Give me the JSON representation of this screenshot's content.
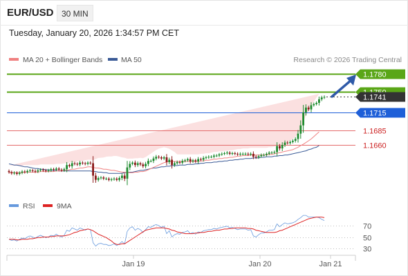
{
  "header": {
    "symbol": "EUR/USD",
    "timeframe": "30 MIN"
  },
  "datetime": "Tuesday, January 20, 2026 1:34:57 PM CET",
  "legend": {
    "ma20_label": "MA 20 + Bollinger Bands",
    "ma50_label": "MA 50",
    "source": "Research © 2026 Trading Central"
  },
  "colors": {
    "ma20": "#f08080",
    "ma50": "#3a5a96",
    "band_fill": "#fbe0e0",
    "candle_up": "#1e8a2e",
    "candle_down": "#8b1a1a",
    "resistance": "#5aa617",
    "pivot": "#1e5fd8",
    "support": "#e46a6a",
    "current": "#333333",
    "arrow": "#2f5aa8",
    "rsi": "#6699dd",
    "rsi_ma": "#dd2222"
  },
  "chart_data": [
    {
      "type": "candlestick",
      "ylim": [
        1.156,
        1.179
      ],
      "x_tick_labels": [
        "Jan 19",
        "Jan 20",
        "Jan 21"
      ],
      "levels": [
        {
          "label": "1.1780",
          "value": 1.178,
          "kind": "resistance"
        },
        {
          "label": "1.1750",
          "value": 1.175,
          "kind": "resistance"
        },
        {
          "label": "1.1741",
          "value": 1.1741,
          "kind": "current"
        },
        {
          "label": "1.1715",
          "value": 1.1715,
          "kind": "pivot"
        },
        {
          "label": "1.1685",
          "value": 1.1685,
          "kind": "support"
        },
        {
          "label": "1.1660",
          "value": 1.166,
          "kind": "support"
        }
      ],
      "close": [
        1.1614,
        1.1612,
        1.1613,
        1.1611,
        1.1613,
        1.1615,
        1.1614,
        1.1616,
        1.1617,
        1.1616,
        1.1615,
        1.1617,
        1.1618,
        1.1617,
        1.1616,
        1.1617,
        1.1619,
        1.1618,
        1.162,
        1.1618,
        1.1617,
        1.1619,
        1.1626,
        1.1624,
        1.1629,
        1.1628,
        1.1627,
        1.163,
        1.1629,
        1.1628,
        1.163,
        1.1629,
        1.1608,
        1.1601,
        1.1604,
        1.1605,
        1.1603,
        1.1603,
        1.1601,
        1.1602,
        1.1603,
        1.1601,
        1.1604,
        1.1608,
        1.1603,
        1.1622,
        1.1628,
        1.163,
        1.1626,
        1.1629,
        1.1627,
        1.1624,
        1.1628,
        1.1633,
        1.1633,
        1.1637,
        1.164,
        1.1639,
        1.1637,
        1.1639,
        1.1631,
        1.1635,
        1.1626,
        1.1629,
        1.1631,
        1.163,
        1.1633,
        1.1634,
        1.1636,
        1.1632,
        1.1634,
        1.1632,
        1.1636,
        1.1635,
        1.1638,
        1.1639,
        1.164,
        1.164,
        1.1642,
        1.1642,
        1.1644,
        1.1645,
        1.1646,
        1.1647,
        1.1645,
        1.1646,
        1.1645,
        1.1644,
        1.1645,
        1.1645,
        1.1645,
        1.1644,
        1.1645,
        1.164,
        1.1639,
        1.1641,
        1.1643,
        1.1643,
        1.1645,
        1.1647,
        1.1647,
        1.1648,
        1.1658,
        1.1654,
        1.166,
        1.1664,
        1.1663,
        1.1665,
        1.1667,
        1.167,
        1.1679,
        1.1693,
        1.1715,
        1.1723,
        1.172,
        1.1727,
        1.1729,
        1.1731,
        1.1737,
        1.174,
        1.1741
      ],
      "series": [
        {
          "name": "MA 20 + Bollinger Bands",
          "values": [
            1.1613,
            1.1613,
            1.1613,
            1.1613,
            1.1613,
            1.1613,
            1.1614,
            1.1614,
            1.1614,
            1.1614,
            1.1614,
            1.1614,
            1.1615,
            1.1615,
            1.1615,
            1.1615,
            1.1615,
            1.1615,
            1.1616,
            1.1616,
            1.1616,
            1.1617,
            1.1617,
            1.1618,
            1.1619,
            1.1619,
            1.162,
            1.1621,
            1.1621,
            1.1622,
            1.1623,
            1.1623,
            1.1622,
            1.1621,
            1.1621,
            1.162,
            1.1619,
            1.1619,
            1.1618,
            1.1617,
            1.1617,
            1.1616,
            1.1615,
            1.1614,
            1.1614,
            1.1613,
            1.1613,
            1.1613,
            1.1614,
            1.1614,
            1.1615,
            1.1615,
            1.1616,
            1.1618,
            1.162,
            1.1622,
            1.1624,
            1.1626,
            1.1628,
            1.163,
            1.1631,
            1.1632,
            1.1632,
            1.1632,
            1.1632,
            1.1632,
            1.1632,
            1.1632,
            1.1632,
            1.1632,
            1.1632,
            1.1632,
            1.1632,
            1.1633,
            1.1633,
            1.1634,
            1.1634,
            1.1635,
            1.1636,
            1.1636,
            1.1637,
            1.1637,
            1.1638,
            1.1638,
            1.1639,
            1.1639,
            1.164,
            1.1641,
            1.1641,
            1.1642,
            1.1642,
            1.1642,
            1.1643,
            1.1643,
            1.1643,
            1.1643,
            1.1643,
            1.1643,
            1.1643,
            1.1644,
            1.1644,
            1.1645,
            1.1646,
            1.1647,
            1.1648,
            1.1649,
            1.165,
            1.1651,
            1.1652,
            1.1654,
            1.1656,
            1.1659,
            1.1661,
            1.1664,
            1.1667,
            1.167,
            1.1674,
            1.1678,
            1.1682
          ]
        },
        {
          "name": "MA 50",
          "values": [
            1.1628,
            1.1627,
            1.1626,
            1.1626,
            1.1625,
            1.1624,
            1.1623,
            1.1623,
            1.1622,
            1.1621,
            1.162,
            1.162,
            1.1619,
            1.1619,
            1.1618,
            1.1618,
            1.1617,
            1.1617,
            1.1617,
            1.1616,
            1.1616,
            1.1616,
            1.1616,
            1.1616,
            1.1616,
            1.1616,
            1.1616,
            1.1616,
            1.1616,
            1.1616,
            1.1616,
            1.1616,
            1.1615,
            1.1615,
            1.1614,
            1.1614,
            1.1613,
            1.1613,
            1.1612,
            1.1612,
            1.1612,
            1.1612,
            1.1612,
            1.1612,
            1.1613,
            1.1613,
            1.1614,
            1.1614,
            1.1615,
            1.1616,
            1.1617,
            1.1617,
            1.1618,
            1.1619,
            1.162,
            1.1621,
            1.1621,
            1.1622,
            1.1623,
            1.1623,
            1.1624,
            1.1624,
            1.1625,
            1.1625,
            1.1625,
            1.1626,
            1.1626,
            1.1626,
            1.1627,
            1.1627,
            1.1627,
            1.1628,
            1.1628,
            1.1629,
            1.1629,
            1.163,
            1.163,
            1.163,
            1.1631,
            1.1631,
            1.1632,
            1.1632,
            1.1633,
            1.1633,
            1.1634,
            1.1634,
            1.1635,
            1.1635,
            1.1636,
            1.1636,
            1.1637,
            1.1637,
            1.1637,
            1.1638,
            1.1638,
            1.1638,
            1.1639,
            1.1639,
            1.164,
            1.164,
            1.164,
            1.1641,
            1.1641,
            1.1642,
            1.1642,
            1.1643,
            1.1643,
            1.1644,
            1.1645,
            1.1646,
            1.1647,
            1.1648,
            1.1649,
            1.165,
            1.1652,
            1.1653,
            1.1655,
            1.1656,
            1.1659
          ]
        }
      ]
    },
    {
      "type": "line",
      "ylim": [
        20,
        85
      ],
      "y_ticks": [
        70,
        50,
        30
      ],
      "series": [
        {
          "name": "RSI",
          "values": [
            46,
            44,
            45,
            43,
            46,
            48,
            47,
            50,
            52,
            50,
            48,
            51,
            53,
            51,
            49,
            50,
            53,
            52,
            55,
            52,
            50,
            53,
            62,
            60,
            66,
            64,
            62,
            66,
            64,
            62,
            64,
            63,
            40,
            34,
            38,
            39,
            37,
            37,
            35,
            36,
            38,
            35,
            38,
            42,
            38,
            60,
            66,
            68,
            62,
            65,
            63,
            58,
            63,
            68,
            67,
            70,
            72,
            70,
            67,
            69,
            56,
            61,
            50,
            54,
            56,
            55,
            58,
            59,
            61,
            56,
            58,
            55,
            59,
            58,
            61,
            62,
            63,
            63,
            65,
            64,
            66,
            67,
            68,
            69,
            66,
            67,
            65,
            63,
            64,
            64,
            64,
            62,
            63,
            52,
            50,
            54,
            57,
            57,
            59,
            62,
            62,
            63,
            73,
            68,
            72,
            75,
            73,
            74,
            75,
            77,
            81,
            84,
            88,
            88,
            85,
            85,
            85,
            85,
            84,
            81,
            79
          ]
        },
        {
          "name": "9MA",
          "values": [
            46,
            46,
            46,
            45,
            45,
            46,
            46,
            46,
            47,
            47,
            48,
            49,
            49,
            50,
            50,
            50,
            51,
            51,
            52,
            52,
            52,
            52,
            53,
            54,
            56,
            58,
            59,
            61,
            62,
            63,
            64,
            63,
            61,
            58,
            55,
            53,
            51,
            49,
            46,
            43,
            39,
            37,
            37,
            38,
            38,
            41,
            44,
            47,
            50,
            53,
            56,
            59,
            62,
            63,
            64,
            65,
            66,
            66,
            66,
            66,
            65,
            64,
            62,
            61,
            59,
            58,
            57,
            56,
            56,
            56,
            56,
            57,
            57,
            58,
            58,
            59,
            60,
            60,
            61,
            62,
            62,
            63,
            64,
            64,
            65,
            65,
            66,
            66,
            66,
            66,
            66,
            65,
            65,
            64,
            62,
            61,
            60,
            59,
            58,
            58,
            58,
            58,
            59,
            61,
            62,
            64,
            66,
            68,
            70,
            72,
            74,
            76,
            78,
            80,
            82,
            83,
            84,
            85,
            85,
            85,
            84
          ]
        }
      ],
      "legend": [
        "RSI",
        "9MA"
      ]
    }
  ]
}
